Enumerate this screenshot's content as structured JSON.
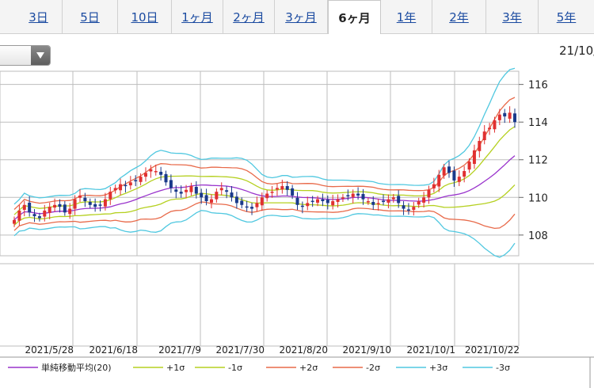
{
  "tabs": [
    {
      "label": "3日",
      "active": false
    },
    {
      "label": "5日",
      "active": false
    },
    {
      "label": "10日",
      "active": false
    },
    {
      "label": "1ヶ月",
      "active": false
    },
    {
      "label": "2ヶ月",
      "active": false
    },
    {
      "label": "3ヶ月",
      "active": false
    },
    {
      "label": "6ヶ月",
      "active": true
    },
    {
      "label": "1年",
      "active": false
    },
    {
      "label": "2年",
      "active": false
    },
    {
      "label": "3年",
      "active": false
    },
    {
      "label": "5年",
      "active": false
    }
  ],
  "date_label": "21/10/",
  "chart_data": {
    "type": "candlestick",
    "y_ticks": [
      "108",
      "110",
      "112",
      "114",
      "116"
    ],
    "ylim": [
      106.9,
      116.7
    ],
    "x_tick_labels": [
      "2021/5/28",
      "2021/6/18",
      "2021/7/9",
      "2021/7/30",
      "2021/8/20",
      "2021/9/10",
      "2021/10/1",
      "2021/10/22"
    ],
    "grid": true,
    "colors": {
      "up": "#e03030",
      "down": "#1a3a8a",
      "sma": "#9933cc",
      "s1": "#b5d020",
      "s2": "#e86a4a",
      "s3": "#50c8e0",
      "grid": "#bdbdbd"
    },
    "overlay_series": [
      "sma",
      "plus1",
      "minus1",
      "plus2",
      "minus2",
      "plus3",
      "minus3"
    ],
    "closes": [
      108.8,
      109.3,
      109.6,
      109.2,
      109.0,
      108.9,
      109.3,
      109.5,
      109.6,
      109.5,
      109.2,
      109.4,
      109.9,
      110.1,
      109.8,
      109.6,
      109.5,
      109.6,
      109.9,
      110.3,
      110.5,
      110.7,
      110.6,
      110.8,
      110.9,
      111.1,
      111.3,
      111.5,
      111.4,
      111.2,
      110.8,
      110.5,
      110.3,
      110.2,
      110.4,
      110.6,
      110.2,
      110.0,
      109.8,
      109.9,
      110.3,
      110.5,
      110.3,
      110.0,
      109.7,
      109.6,
      109.5,
      109.4,
      109.7,
      110.0,
      110.2,
      110.3,
      110.5,
      110.6,
      110.4,
      110.1,
      109.6,
      109.5,
      109.7,
      109.8,
      109.9,
      109.8,
      109.7,
      109.8,
      109.9,
      110.0,
      110.1,
      110.2,
      110.1,
      109.9,
      109.8,
      109.6,
      109.7,
      109.8,
      109.9,
      110.0,
      109.7,
      109.4,
      109.3,
      109.5,
      109.8,
      110.0,
      110.4,
      110.7,
      111.2,
      111.6,
      111.3,
      110.9,
      111.1,
      111.4,
      111.9,
      112.5,
      113.0,
      113.5,
      113.7,
      114.1,
      114.4,
      114.3,
      114.5,
      114.0
    ],
    "legend": [
      {
        "key": "sma",
        "label": "単純移動平均(20)"
      },
      {
        "key": "p1",
        "label": "+1σ"
      },
      {
        "key": "m1",
        "label": "-1σ"
      },
      {
        "key": "p2",
        "label": "+2σ"
      },
      {
        "key": "m2",
        "label": "-2σ"
      },
      {
        "key": "p3",
        "label": "+3σ"
      },
      {
        "key": "m3",
        "label": "-3σ"
      }
    ]
  }
}
